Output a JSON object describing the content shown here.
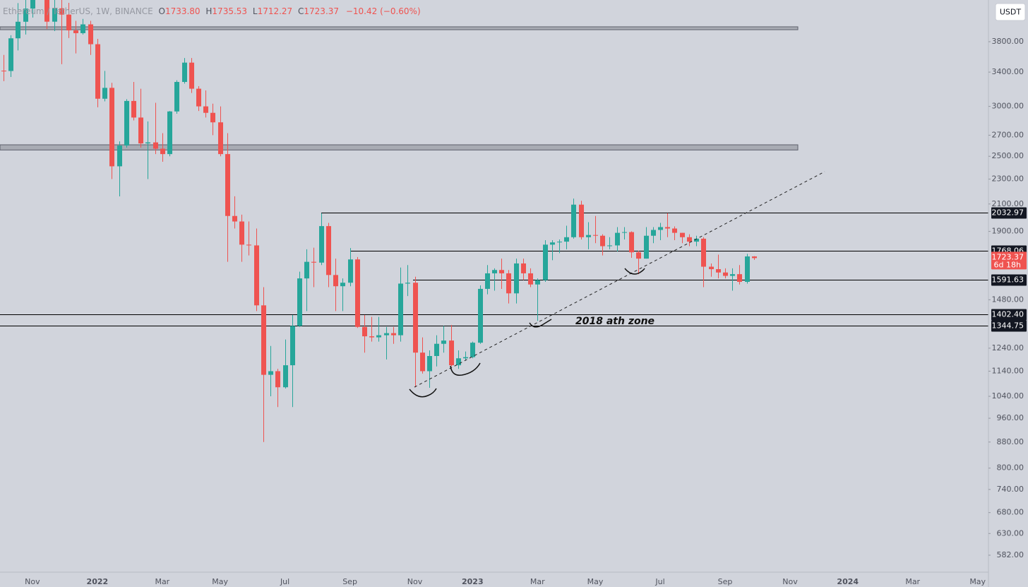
{
  "chart_data": {
    "type": "candlestick",
    "header": {
      "symbol": "Ethereum / TetherUS, 1W, BINANCE",
      "o": "O",
      "open": "1733.80",
      "h": "H",
      "high": "1735.53",
      "l": "L",
      "low": "1712.27",
      "c": "C",
      "close": "1723.37",
      "change": "−10.42 (−0.60%)"
    },
    "currency_button": "USDT",
    "countdown": "6d 18h",
    "annotation": "2018 ath zone",
    "up_color": "#26a69a",
    "down_color": "#ef5350",
    "log_scale": true,
    "ylim": [
      547,
      4425
    ],
    "yticks": [
      {
        "value": 3800,
        "label": "3800.00"
      },
      {
        "value": 3400,
        "label": "3400.00"
      },
      {
        "value": 3000,
        "label": "3000.00"
      },
      {
        "value": 2700,
        "label": "2700.00"
      },
      {
        "value": 2500,
        "label": "2500.00"
      },
      {
        "value": 2300,
        "label": "2300.00"
      },
      {
        "value": 2100,
        "label": "2100.00"
      },
      {
        "value": 1900,
        "label": "1900.00"
      },
      {
        "value": 1480,
        "label": "1480.00"
      },
      {
        "value": 1240,
        "label": "1240.00"
      },
      {
        "value": 1140,
        "label": "1140.00"
      },
      {
        "value": 1040,
        "label": "1040.00"
      },
      {
        "value": 960,
        "label": "960.00"
      },
      {
        "value": 880,
        "label": "880.00"
      },
      {
        "value": 800,
        "label": "800.00"
      },
      {
        "value": 740,
        "label": "740.00"
      },
      {
        "value": 680,
        "label": "680.00"
      },
      {
        "value": 630,
        "label": "630.00"
      },
      {
        "value": 582,
        "label": "582.00"
      }
    ],
    "levels": [
      {
        "value": 2032.97,
        "label": "2032.97"
      },
      {
        "value": 1768.06,
        "label": "1768.06"
      },
      {
        "value": 1591.63,
        "label": "1591.63"
      },
      {
        "value": 1402.4,
        "label": "1402.40"
      },
      {
        "value": 1344.75,
        "label": "1344.75"
      }
    ],
    "zones": [
      [
        3970,
        4012
      ],
      [
        2558,
        2607
      ]
    ],
    "categories": [
      null,
      null,
      null,
      null,
      "Nov",
      null,
      null,
      null,
      null,
      null,
      null,
      null,
      null,
      "2022",
      null,
      null,
      null,
      null,
      null,
      null,
      null,
      null,
      "Mar",
      null,
      null,
      null,
      null,
      null,
      null,
      null,
      "May",
      null,
      null,
      null,
      null,
      null,
      null,
      null,
      null,
      "Jul",
      null,
      null,
      null,
      null,
      null,
      null,
      null,
      null,
      "Sep",
      null,
      null,
      null,
      null,
      null,
      null,
      null,
      null,
      "Nov",
      null,
      null,
      null,
      null,
      null,
      null,
      null,
      "2023",
      null,
      null,
      null,
      null,
      null,
      null,
      null,
      null,
      "Mar",
      null,
      null,
      null,
      null,
      null,
      null,
      null,
      "May",
      null,
      null,
      null,
      null,
      null,
      null,
      null,
      null,
      "Jul",
      null,
      null,
      null,
      null,
      null,
      null,
      null,
      null,
      "Sep",
      null,
      null,
      null,
      null,
      null,
      null,
      null,
      null,
      "Nov",
      null,
      null,
      null,
      null,
      null,
      null,
      null,
      "2024",
      null,
      null,
      null,
      null,
      null,
      null,
      null,
      null,
      "Mar",
      null,
      null,
      null,
      null,
      null,
      null,
      null,
      null,
      "May"
    ],
    "open": [
      3418,
      3414,
      3847,
      4087,
      4288,
      4612,
      4565,
      4088,
      4292,
      4195,
      3960,
      3920,
      4048,
      3765,
      3085,
      3210,
      2410,
      2600,
      3060,
      2880,
      2620,
      2630,
      2570,
      2520,
      2945,
      3280,
      3520,
      3200,
      3000,
      2930,
      2830,
      2520,
      2010,
      1970,
      1810,
      1805,
      1450,
      1125,
      1140,
      1075,
      1165,
      1345,
      1600,
      1700,
      1695,
      1937,
      1620,
      1555,
      1575,
      1715,
      1340,
      1295,
      1290,
      1300,
      1310,
      1300,
      1570,
      1575,
      1220,
      1140,
      1205,
      1260,
      1275,
      1165,
      1195,
      1200,
      1265,
      1540,
      1630,
      1650,
      1630,
      1515,
      1690,
      1630,
      1565,
      1590,
      1810,
      1825,
      1830,
      1860,
      2095,
      1860,
      1875,
      1870,
      1800,
      1805,
      1890,
      1895,
      1760,
      1720,
      1870,
      1910,
      1930,
      1920,
      1890,
      1860,
      1830,
      1850,
      1670,
      1655,
      1635,
      1615,
      1625,
      1580,
      1733.8,
      null,
      null,
      null,
      null,
      null,
      null,
      null,
      null,
      null,
      null,
      null,
      null,
      null,
      null,
      null,
      null,
      null,
      null,
      null,
      null,
      null,
      null,
      null,
      null,
      null,
      null,
      null,
      null,
      null,
      null,
      null
    ],
    "high": [
      3620,
      3890,
      4375,
      4460,
      4700,
      4870,
      4585,
      4555,
      4780,
      4380,
      4100,
      4130,
      4100,
      3840,
      3415,
      3270,
      2640,
      3080,
      3280,
      3200,
      2840,
      3040,
      2720,
      2950,
      3300,
      3580,
      3580,
      3230,
      3180,
      3030,
      3000,
      2720,
      2160,
      2020,
      1970,
      1920,
      1550,
      1250,
      1150,
      1280,
      1400,
      1640,
      1780,
      1790,
      2030,
      1960,
      1720,
      1600,
      1788,
      1730,
      1400,
      1390,
      1390,
      1340,
      1340,
      1665,
      1680,
      1610,
      1290,
      1230,
      1300,
      1345,
      1350,
      1230,
      1225,
      1270,
      1560,
      1680,
      1660,
      1720,
      1650,
      1720,
      1720,
      1660,
      1600,
      1840,
      1840,
      1845,
      1940,
      2142,
      2125,
      1965,
      2010,
      1880,
      1860,
      1930,
      1930,
      1900,
      1770,
      1930,
      1930,
      1960,
      2030,
      1935,
      1890,
      1880,
      1870,
      1860,
      1690,
      1745,
      1660,
      1660,
      1680,
      1750,
      1735.53,
      null,
      null,
      null,
      null,
      null,
      null,
      null,
      null,
      null,
      null,
      null,
      null,
      null,
      null,
      null,
      null,
      null,
      null,
      null,
      null,
      null,
      null,
      null,
      null,
      null,
      null,
      null,
      null,
      null,
      null,
      null
    ],
    "low": [
      3290,
      3340,
      3680,
      3900,
      4150,
      4500,
      3980,
      3950,
      3500,
      3850,
      3640,
      3900,
      3620,
      2990,
      3055,
      2300,
      2159,
      2580,
      2850,
      2580,
      2300,
      2520,
      2450,
      2500,
      2920,
      3260,
      3150,
      2950,
      2880,
      2700,
      2500,
      1700,
      1920,
      1700,
      1740,
      1420,
      880,
      1040,
      1000,
      1070,
      1000,
      1340,
      1420,
      1550,
      1680,
      1550,
      1420,
      1420,
      1555,
      1335,
      1220,
      1270,
      1270,
      1190,
      1260,
      1270,
      1500,
      1075,
      1130,
      1073,
      1160,
      1220,
      1160,
      1150,
      1185,
      1195,
      1260,
      1510,
      1530,
      1540,
      1460,
      1460,
      1590,
      1550,
      1370,
      1580,
      1710,
      1755,
      1780,
      1850,
      1845,
      1780,
      1820,
      1740,
      1780,
      1765,
      1845,
      1725,
      1625,
      1720,
      1820,
      1840,
      1860,
      1840,
      1820,
      1800,
      1800,
      1550,
      1610,
      1600,
      1600,
      1530,
      1565,
      1570,
      1712.27,
      null,
      null,
      null,
      null,
      null,
      null,
      null,
      null,
      null,
      null,
      null,
      null,
      null,
      null,
      null,
      null,
      null,
      null,
      null,
      null,
      null,
      null,
      null,
      null,
      null,
      null,
      null,
      null,
      null,
      null,
      null
    ],
    "close": [
      3414,
      3847,
      4087,
      4288,
      4612,
      4565,
      4088,
      4292,
      4195,
      3960,
      3920,
      4048,
      3765,
      3085,
      3210,
      2410,
      2600,
      3060,
      2880,
      2620,
      2630,
      2570,
      2520,
      2945,
      3280,
      3520,
      3200,
      3000,
      2930,
      2830,
      2520,
      2010,
      1970,
      1810,
      1805,
      1450,
      1125,
      1140,
      1075,
      1165,
      1345,
      1600,
      1700,
      1695,
      1937,
      1620,
      1555,
      1575,
      1715,
      1340,
      1295,
      1290,
      1300,
      1310,
      1300,
      1570,
      1575,
      1220,
      1140,
      1205,
      1260,
      1275,
      1165,
      1195,
      1200,
      1265,
      1540,
      1630,
      1650,
      1630,
      1515,
      1690,
      1630,
      1565,
      1590,
      1810,
      1825,
      1830,
      1860,
      2095,
      1860,
      1875,
      1870,
      1800,
      1805,
      1890,
      1895,
      1760,
      1720,
      1870,
      1910,
      1930,
      1920,
      1890,
      1860,
      1830,
      1850,
      1670,
      1655,
      1635,
      1615,
      1625,
      1580,
      1733.8,
      1723.37,
      null,
      null,
      null,
      null,
      null,
      null,
      null,
      null,
      null,
      null,
      null,
      null,
      null,
      null,
      null,
      null,
      null,
      null,
      null,
      null,
      null,
      null,
      null,
      null,
      null,
      null,
      null,
      null,
      null,
      null,
      null
    ]
  }
}
